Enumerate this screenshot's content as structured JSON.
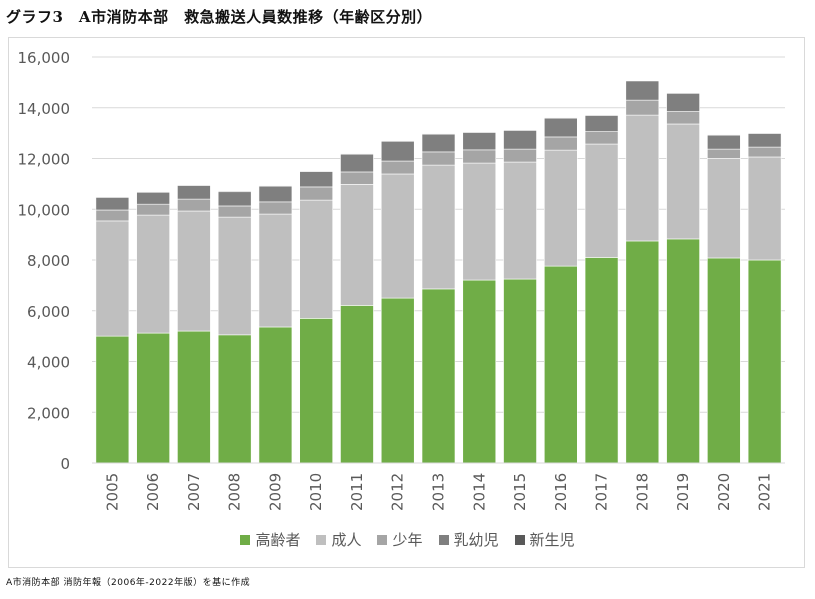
{
  "title": "グラフ3　A市消防本部　救急搬送人員数推移（年齢区分別）",
  "source": "A市消防本部 消防年報（2006年-2022年版）を基に作成",
  "chart_data": {
    "type": "bar",
    "stacked": true,
    "title": "",
    "xlabel": "",
    "ylabel": "",
    "ylim": [
      0,
      16000
    ],
    "yticks": [
      0,
      2000,
      4000,
      6000,
      8000,
      10000,
      12000,
      14000,
      16000
    ],
    "ytick_labels": [
      "0",
      "2,000",
      "4,000",
      "6,000",
      "8,000",
      "10,000",
      "12,000",
      "14,000",
      "16,000"
    ],
    "grid": true,
    "legend_position": "bottom",
    "categories": [
      "2005",
      "2006",
      "2007",
      "2008",
      "2009",
      "2010",
      "2011",
      "2012",
      "2013",
      "2014",
      "2015",
      "2016",
      "2017",
      "2018",
      "2019",
      "2020",
      "2021"
    ],
    "series": [
      {
        "name": "高齢者",
        "color": "#70ad47",
        "values": [
          5000,
          5120,
          5200,
          5050,
          5360,
          5700,
          6210,
          6500,
          6860,
          7210,
          7250,
          7760,
          8100,
          8750,
          8830,
          8080,
          8000
        ]
      },
      {
        "name": "成人",
        "color": "#bfbfbf",
        "values": [
          4540,
          4650,
          4730,
          4640,
          4450,
          4660,
          4770,
          4890,
          4880,
          4610,
          4610,
          4570,
          4470,
          4960,
          4530,
          3920,
          4060
        ]
      },
      {
        "name": "少年",
        "color": "#a5a5a5",
        "values": [
          430,
          430,
          470,
          440,
          480,
          520,
          490,
          510,
          520,
          520,
          510,
          520,
          490,
          590,
          490,
          370,
          390
        ]
      },
      {
        "name": "乳幼児",
        "color": "#7f7f7f",
        "values": [
          500,
          470,
          540,
          560,
          620,
          610,
          700,
          780,
          700,
          690,
          740,
          740,
          640,
          760,
          720,
          550,
          540
        ]
      },
      {
        "name": "新生児",
        "color": "#595959",
        "values": [
          10,
          10,
          10,
          30,
          10,
          10,
          10,
          10,
          10,
          10,
          10,
          10,
          10,
          10,
          10,
          10,
          10
        ]
      }
    ]
  }
}
